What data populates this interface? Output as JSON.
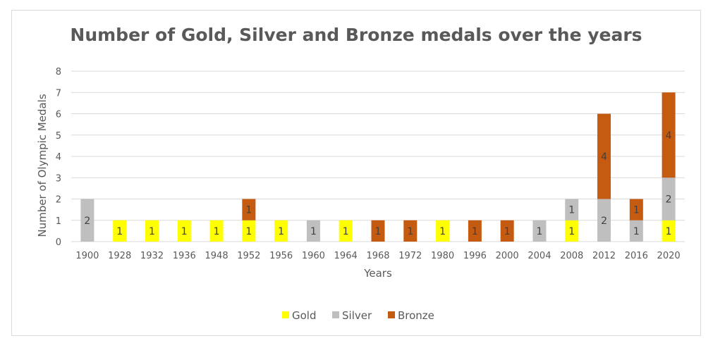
{
  "chart_data": {
    "type": "bar",
    "stacked": true,
    "title": "Number of Gold, Silver and Bronze medals over the years",
    "xlabel": "Years",
    "ylabel": "Number of Olympic Medals",
    "ylim": [
      0,
      8
    ],
    "yticks": [
      "0",
      "1",
      "2",
      "3",
      "4",
      "5",
      "6",
      "7",
      "8"
    ],
    "grid": true,
    "legend_position": "bottom",
    "categories": [
      "1900",
      "1928",
      "1932",
      "1936",
      "1948",
      "1952",
      "1956",
      "1960",
      "1964",
      "1968",
      "1972",
      "1980",
      "1996",
      "2000",
      "2004",
      "2008",
      "2012",
      "2016",
      "2020"
    ],
    "series": [
      {
        "name": "Gold",
        "color": "#FFFF00",
        "values": [
          0,
          1,
          1,
          1,
          1,
          1,
          1,
          0,
          1,
          0,
          0,
          1,
          0,
          0,
          0,
          1,
          0,
          0,
          1
        ]
      },
      {
        "name": "Silver",
        "color": "#BFBFBF",
        "values": [
          2,
          0,
          0,
          0,
          0,
          0,
          0,
          1,
          0,
          0,
          0,
          0,
          0,
          0,
          1,
          1,
          2,
          1,
          2
        ]
      },
      {
        "name": "Bronze",
        "color": "#C55A11",
        "values": [
          0,
          0,
          0,
          0,
          0,
          1,
          0,
          0,
          0,
          1,
          1,
          0,
          1,
          1,
          0,
          0,
          4,
          1,
          4
        ]
      }
    ]
  }
}
